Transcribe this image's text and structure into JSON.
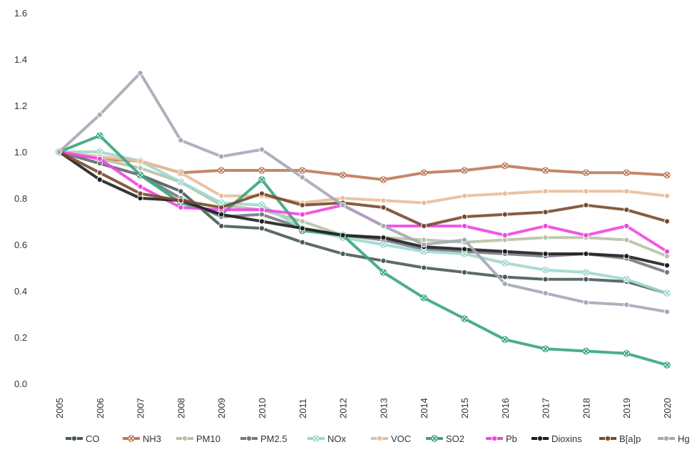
{
  "chart_data": {
    "type": "line",
    "title": "",
    "xlabel": "",
    "ylabel": "",
    "ylim": [
      0.0,
      1.6
    ],
    "yticks": [
      "0.0",
      "0.2",
      "0.4",
      "0.6",
      "0.8",
      "1.0",
      "1.2",
      "1.4",
      "1.6"
    ],
    "grid": false,
    "legend_position": "bottom",
    "x": [
      "2005",
      "2006",
      "2007",
      "2008",
      "2009",
      "2010",
      "2011",
      "2012",
      "2013",
      "2014",
      "2015",
      "2016",
      "2017",
      "2018",
      "2019",
      "2020"
    ],
    "series": [
      {
        "name": "CO",
        "color": "#4a5a5a",
        "marker": "circle",
        "values": [
          1.0,
          0.95,
          0.9,
          0.83,
          0.68,
          0.67,
          0.61,
          0.56,
          0.53,
          0.5,
          0.48,
          0.46,
          0.45,
          0.45,
          0.44,
          0.39
        ]
      },
      {
        "name": "NH3",
        "color": "#bd7a5a",
        "marker": "x",
        "values": [
          1.0,
          0.97,
          0.96,
          0.91,
          0.92,
          0.92,
          0.92,
          0.9,
          0.88,
          0.91,
          0.92,
          0.94,
          0.92,
          0.91,
          0.91,
          0.9
        ]
      },
      {
        "name": "PM10",
        "color": "#b7c2a6",
        "marker": "circle",
        "values": [
          1.0,
          0.97,
          0.93,
          0.87,
          0.77,
          0.75,
          0.7,
          0.64,
          0.63,
          0.62,
          0.61,
          0.62,
          0.63,
          0.63,
          0.62,
          0.55
        ]
      },
      {
        "name": "PM2.5",
        "color": "#757983",
        "marker": "circle",
        "values": [
          1.0,
          0.95,
          0.9,
          0.8,
          0.72,
          0.73,
          0.67,
          0.64,
          0.62,
          0.58,
          0.57,
          0.56,
          0.55,
          0.56,
          0.54,
          0.48
        ]
      },
      {
        "name": "NOx",
        "color": "#9fd8cf",
        "marker": "x",
        "values": [
          1.0,
          1.0,
          0.96,
          0.87,
          0.78,
          0.77,
          0.67,
          0.63,
          0.6,
          0.57,
          0.56,
          0.52,
          0.49,
          0.48,
          0.45,
          0.39
        ]
      },
      {
        "name": "VOC",
        "color": "#e9bd9a",
        "marker": "circle",
        "values": [
          1.0,
          0.98,
          0.96,
          0.91,
          0.81,
          0.81,
          0.78,
          0.8,
          0.79,
          0.78,
          0.81,
          0.82,
          0.83,
          0.83,
          0.83,
          0.81
        ]
      },
      {
        "name": "SO2",
        "color": "#3aa57f",
        "marker": "x",
        "values": [
          1.0,
          1.07,
          0.9,
          0.78,
          0.73,
          0.88,
          0.66,
          0.64,
          0.48,
          0.37,
          0.28,
          0.19,
          0.15,
          0.14,
          0.13,
          0.08
        ]
      },
      {
        "name": "Pb",
        "color": "#ee46e3",
        "marker": "circle",
        "values": [
          1.0,
          0.97,
          0.85,
          0.76,
          0.75,
          0.75,
          0.73,
          0.77,
          0.68,
          0.68,
          0.68,
          0.64,
          0.68,
          0.64,
          0.68,
          0.57
        ]
      },
      {
        "name": "Dioxins",
        "color": "#1f1f1f",
        "marker": "circle",
        "values": [
          1.0,
          0.88,
          0.8,
          0.79,
          0.73,
          0.7,
          0.67,
          0.64,
          0.63,
          0.59,
          0.58,
          0.57,
          0.56,
          0.56,
          0.55,
          0.51
        ]
      },
      {
        "name": "B[a]p",
        "color": "#7a4a2e",
        "marker": "circle",
        "values": [
          1.0,
          0.91,
          0.82,
          0.79,
          0.76,
          0.82,
          0.77,
          0.78,
          0.76,
          0.68,
          0.72,
          0.73,
          0.74,
          0.77,
          0.75,
          0.7
        ]
      },
      {
        "name": "Hg",
        "color": "#a3a9b6",
        "marker": "circle",
        "values": [
          1.0,
          1.16,
          1.34,
          1.05,
          0.98,
          1.01,
          0.89,
          0.77,
          0.68,
          0.6,
          0.62,
          0.43,
          0.39,
          0.35,
          0.34,
          0.31
        ]
      }
    ]
  }
}
